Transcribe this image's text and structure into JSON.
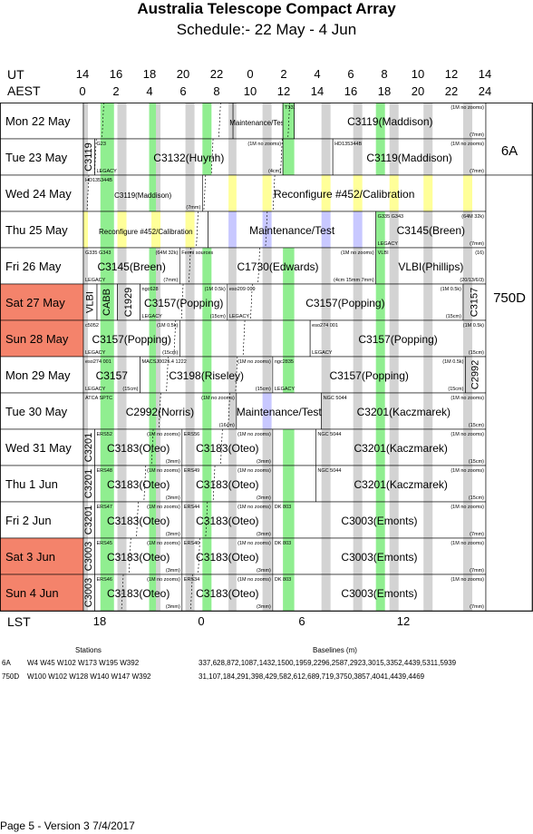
{
  "header": {
    "title": "Australia Telescope Compact Array",
    "subtitle": "Schedule:- 22 May - 4  Jun"
  },
  "time_axes": {
    "ut_label": "UT",
    "aest_label": "AEST",
    "lst_label": "LST",
    "ut_ticks": [
      "14",
      "16",
      "18",
      "20",
      "22",
      "0",
      "2",
      "4",
      "6",
      "8",
      "10",
      "12",
      "14"
    ],
    "aest_ticks": [
      "0",
      "2",
      "4",
      "6",
      "8",
      "10",
      "12",
      "14",
      "16",
      "18",
      "20",
      "22",
      "24"
    ],
    "lst_ticks": [
      "18",
      "0",
      "6",
      "12"
    ]
  },
  "colors": {
    "gray": "#d3d3d3",
    "green": "#90ee90",
    "lavender": "#c8c8ff",
    "yellow": "#ffff99",
    "weekend": "#f4836b",
    "white": "#ffffff"
  },
  "days": [
    {
      "label": "Mon  22 May",
      "weekend": false
    },
    {
      "label": "Tue  23 May",
      "weekend": false
    },
    {
      "label": "Wed 24 May",
      "weekend": false
    },
    {
      "label": "Thu  25 May",
      "weekend": false
    },
    {
      "label": "Fri    26 May",
      "weekend": false
    },
    {
      "label": "Sat   27 May",
      "weekend": true
    },
    {
      "label": "Sun  28 May",
      "weekend": true
    },
    {
      "label": "Mon 29 May",
      "weekend": false
    },
    {
      "label": "Tue  30 May",
      "weekend": false
    },
    {
      "label": "Wed 31 May",
      "weekend": false
    },
    {
      "label": "Thu    1  Jun",
      "weekend": false
    },
    {
      "label": "Fri     2  Jun",
      "weekend": false
    },
    {
      "label": "Sat    3  Jun",
      "weekend": true
    },
    {
      "label": "Sun    4  Jun",
      "weekend": true
    }
  ],
  "configs": [
    {
      "label": "6A",
      "row_start": 0,
      "row_end": 2
    },
    {
      "label": "750D",
      "row_start": 2,
      "row_end": 14
    }
  ],
  "blocks": [
    {
      "row": 0,
      "start": 0,
      "end": 13.2,
      "label": "",
      "bg": "white"
    },
    {
      "row": 0,
      "start": 13.2,
      "end": 17.6,
      "label": "Maintenance/Test",
      "size": 8,
      "bg": "white"
    },
    {
      "row": 0,
      "start": 17.6,
      "end": 18.6,
      "label": "",
      "note_tl": "T332",
      "bg": "white"
    },
    {
      "row": 0,
      "start": 18.6,
      "end": 35.5,
      "label": "C3119(Maddison)",
      "size": 12,
      "note_tr": "(1M no zooms)",
      "note_br": "(7mm)",
      "bg": "white"
    },
    {
      "row": 1,
      "start": 0,
      "end": 1,
      "label": "C3119",
      "vertical": true,
      "size": 11,
      "bg": "white"
    },
    {
      "row": 1,
      "start": 1,
      "end": 17.6,
      "label": "C3132(Huynh)",
      "size": 12,
      "note_tl": "G23",
      "note_bl": "LEGACY",
      "note_tr": "(1M no zooms)",
      "note_br": "(4cm)",
      "bg": "white"
    },
    {
      "row": 1,
      "start": 17.6,
      "end": 22,
      "label": "",
      "bg": "white"
    },
    {
      "row": 1,
      "start": 22,
      "end": 35.5,
      "label": "C3119(Maddison)",
      "size": 12,
      "note_tl": "HD135344B",
      "note_tr": "(1M no zooms)",
      "note_br": "(7mm)",
      "bg": "white"
    },
    {
      "row": 2,
      "start": 0,
      "end": 10.5,
      "label": "C3119(Maddison)",
      "size": 8,
      "note_tl": "HD135344B",
      "note_br": "(7mm)",
      "bg": "white"
    },
    {
      "row": 2,
      "start": 10.5,
      "end": 35.5,
      "label": "Reconfigure #452/Calibration",
      "size": 12,
      "bg": "recon"
    },
    {
      "row": 3,
      "start": 0,
      "end": 11,
      "label": "Reconfigure #452/Calibration",
      "size": 8,
      "bg": "recon"
    },
    {
      "row": 3,
      "start": 11,
      "end": 25.8,
      "label": "Maintenance/Test",
      "size": 12,
      "bg": "maint"
    },
    {
      "row": 3,
      "start": 25.8,
      "end": 35.5,
      "label": "C3145(Breen)",
      "size": 12,
      "note_tl": "G335 G343",
      "note_tr": "(64M 32k)",
      "note_bl": "LEGACY",
      "note_br": "(7mm)",
      "bg": "white"
    },
    {
      "row": 4,
      "start": 0,
      "end": 8.5,
      "label": "C3145(Breen)",
      "size": 12,
      "note_tl": "G335 G343",
      "note_tr": "(64M 32k)",
      "note_bl": "LEGACY",
      "note_br": "(7mm)",
      "bg": "white"
    },
    {
      "row": 4,
      "start": 8.5,
      "end": 25.8,
      "label": "C1730(Edwards)",
      "size": 12,
      "note_tl": "Fermi sources",
      "note_tr": "(1M no zooms)",
      "note_br": "(4cm 15mm 7mm)",
      "bg": "white"
    },
    {
      "row": 4,
      "start": 25.8,
      "end": 35.5,
      "label": "VLBI(Phillips)",
      "size": 12,
      "note_tl": "VLBI",
      "note_tr": "(16)",
      "note_br": "(20/13/6/3)",
      "bg": "white"
    },
    {
      "row": 5,
      "start": 0,
      "end": 1.2,
      "label": "VLBI",
      "vertical": true,
      "size": 11,
      "bg": "white"
    },
    {
      "row": 5,
      "start": 1.2,
      "end": 3,
      "label": "CABB",
      "vertical": true,
      "size": 11,
      "bg": "white"
    },
    {
      "row": 5,
      "start": 3,
      "end": 5,
      "label": "C1929",
      "vertical": true,
      "size": 11,
      "bg": "white"
    },
    {
      "row": 5,
      "start": 5,
      "end": 12.7,
      "label": "C3157(Popping)",
      "size": 12,
      "note_tl": "ngc628",
      "note_tr": "(1M 0.5k)",
      "note_bl": "LEGACY",
      "note_br": "(15cm)",
      "bg": "white"
    },
    {
      "row": 5,
      "start": 12.7,
      "end": 33.5,
      "label": "C3157(Popping)",
      "size": 12,
      "note_tl": "eso209 009",
      "note_tr": "(1M 0.5k)",
      "note_bl": "LEGACY",
      "note_br": "(15cm)",
      "bg": "white"
    },
    {
      "row": 5,
      "start": 33.5,
      "end": 35.5,
      "label": "C3157",
      "vertical": true,
      "size": 11,
      "bg": "white"
    },
    {
      "row": 6,
      "start": 0,
      "end": 8.5,
      "label": "C3157(Popping)",
      "size": 12,
      "note_tl": "c5052",
      "note_tr": "(1M 0.5k)",
      "note_bl": "LEGACY",
      "note_br": "(15cm)",
      "bg": "white"
    },
    {
      "row": 6,
      "start": 8.5,
      "end": 20,
      "label": "",
      "bg": "white"
    },
    {
      "row": 6,
      "start": 20,
      "end": 35.5,
      "label": "C3157(Popping)",
      "size": 12,
      "note_tl": "eso274 001",
      "note_tr": "(1M 0.5k)",
      "note_bl": "LEGACY",
      "note_br": "(15cm)",
      "bg": "white"
    },
    {
      "row": 7,
      "start": 0,
      "end": 5,
      "label": "C3157",
      "size": 12,
      "note_tl": "eso274 001",
      "note_bl": "LEGACY",
      "note_br": "(15cm)",
      "bg": "white"
    },
    {
      "row": 7,
      "start": 5,
      "end": 16.7,
      "label": "C3198(Riseley)",
      "size": 12,
      "note_tl": "MACSJ0025.4 1222",
      "note_tr": "(1M no zooms)",
      "note_br": "(15cm)",
      "bg": "white"
    },
    {
      "row": 7,
      "start": 16.7,
      "end": 33.7,
      "label": "C3157(Popping)",
      "size": 12,
      "note_tl": "ngc2835",
      "note_tr": "(1M 0.5k)",
      "note_bl": "LEGACY",
      "note_br": "(15cm)",
      "bg": "white"
    },
    {
      "row": 7,
      "start": 33.7,
      "end": 35.5,
      "label": "C2992",
      "vertical": true,
      "size": 11,
      "bg": "white"
    },
    {
      "row": 8,
      "start": 0,
      "end": 13.5,
      "label": "C2992(Norris)",
      "size": 12,
      "note_tl": "ATCA SPTC",
      "note_tr": "(1M no zooms)",
      "note_br": "(16cm)",
      "bg": "white"
    },
    {
      "row": 8,
      "start": 13.5,
      "end": 21,
      "label": "Maintenance/Test",
      "size": 12,
      "bg": "maint"
    },
    {
      "row": 8,
      "start": 21,
      "end": 35.5,
      "label": "C3201(Kaczmarek)",
      "size": 12,
      "note_tl": "NGC 5044",
      "note_tr": "(1M no zooms)",
      "note_br": "(15cm)",
      "bg": "white"
    },
    {
      "row": 9,
      "start": 0,
      "end": 1,
      "label": "C3201",
      "vertical": true,
      "size": 11,
      "bg": "white"
    },
    {
      "row": 9,
      "start": 1,
      "end": 8.7,
      "label": "C3183(Oteo)",
      "size": 12,
      "note_tl": "ERS52",
      "note_tr": "(1M no zooms)",
      "note_br": "(3mm)",
      "bg": "white"
    },
    {
      "row": 9,
      "start": 8.7,
      "end": 16.7,
      "label": "C3183(Oteo)",
      "size": 12,
      "note_tl": "ERS56",
      "note_tr": "(1M no zooms)",
      "note_br": "(3mm)",
      "bg": "white"
    },
    {
      "row": 9,
      "start": 16.7,
      "end": 20.5,
      "label": "",
      "bg": "white"
    },
    {
      "row": 9,
      "start": 20.5,
      "end": 35.5,
      "label": "C3201(Kaczmarek)",
      "size": 12,
      "note_tl": "NGC 5044",
      "note_tr": "(1M no zooms)",
      "note_br": "(15cm)",
      "bg": "white"
    },
    {
      "row": 10,
      "start": 0,
      "end": 1,
      "label": "C3201",
      "vertical": true,
      "size": 11,
      "bg": "white"
    },
    {
      "row": 10,
      "start": 1,
      "end": 8.7,
      "label": "C3183(Oteo)",
      "size": 12,
      "note_tl": "ERS48",
      "note_tr": "(1M no zooms)",
      "note_br": "(3mm)",
      "bg": "white"
    },
    {
      "row": 10,
      "start": 8.7,
      "end": 16.7,
      "label": "C3183(Oteo)",
      "size": 12,
      "note_tl": "ERS49",
      "note_tr": "(1M no zooms)",
      "note_br": "(3mm)",
      "bg": "white"
    },
    {
      "row": 10,
      "start": 16.7,
      "end": 20.5,
      "label": "",
      "bg": "white"
    },
    {
      "row": 10,
      "start": 20.5,
      "end": 35.5,
      "label": "C3201(Kaczmarek)",
      "size": 12,
      "note_tl": "NGC 5044",
      "note_tr": "(1M no zooms)",
      "note_br": "(15cm)",
      "bg": "white"
    },
    {
      "row": 11,
      "start": 0,
      "end": 1,
      "label": "C3201",
      "vertical": true,
      "size": 11,
      "bg": "white"
    },
    {
      "row": 11,
      "start": 1,
      "end": 8.7,
      "label": "C3183(Oteo)",
      "size": 12,
      "note_tl": "ERS47",
      "note_tr": "(1M no zooms)",
      "note_br": "(3mm)",
      "bg": "white"
    },
    {
      "row": 11,
      "start": 8.7,
      "end": 16.7,
      "label": "C3183(Oteo)",
      "size": 12,
      "note_tl": "ERS44",
      "note_tr": "(1M no zooms)",
      "note_br": "(3mm)",
      "bg": "white"
    },
    {
      "row": 11,
      "start": 16.7,
      "end": 35.5,
      "label": "C3003(Emonts)",
      "size": 12,
      "note_tl": "DK 803",
      "note_tr": "(1M no zooms)",
      "note_br": "(7mm)",
      "bg": "white"
    },
    {
      "row": 12,
      "start": 0,
      "end": 1,
      "label": "C3003",
      "vertical": true,
      "size": 11,
      "bg": "white"
    },
    {
      "row": 12,
      "start": 1,
      "end": 8.7,
      "label": "C3183(Oteo)",
      "size": 12,
      "note_tl": "ERS45",
      "note_tr": "(1M no zooms)",
      "note_br": "(3mm)",
      "bg": "white"
    },
    {
      "row": 12,
      "start": 8.7,
      "end": 16.7,
      "label": "C3183(Oteo)",
      "size": 12,
      "note_tl": "ERS40",
      "note_tr": "(1M no zooms)",
      "note_br": "(3mm)",
      "bg": "white"
    },
    {
      "row": 12,
      "start": 16.7,
      "end": 35.5,
      "label": "C3003(Emonts)",
      "size": 12,
      "note_tl": "DK 803",
      "note_tr": "(1M no zooms)",
      "note_br": "(7mm)",
      "bg": "white"
    },
    {
      "row": 13,
      "start": 0,
      "end": 1,
      "label": "C3003",
      "vertical": true,
      "size": 11,
      "bg": "white"
    },
    {
      "row": 13,
      "start": 1,
      "end": 8.7,
      "label": "C3183(Oteo)",
      "size": 12,
      "note_tl": "ERS46",
      "note_tr": "(1M no zooms)",
      "note_br": "(3mm)",
      "bg": "white"
    },
    {
      "row": 13,
      "start": 8.7,
      "end": 16.7,
      "label": "C3183(Oteo)",
      "size": 12,
      "note_tl": "ERS34",
      "note_tr": "(1M no zooms)",
      "note_br": "(3mm)",
      "bg": "white"
    },
    {
      "row": 13,
      "start": 16.7,
      "end": 35.5,
      "label": "C3003(Emonts)",
      "size": 12,
      "note_tl": "DK 803",
      "note_tr": "(1M no zooms)",
      "note_br": "(7mm)",
      "bg": "white"
    }
  ],
  "stations_table": {
    "stations_header": "Stations",
    "baselines_header": "Baselines (m)",
    "rows": [
      {
        "config": "6A",
        "stations": "W4 W45 W102 W173 W195 W392",
        "baselines": "337,628,872,1087,1432,1500,1959,2296,2587,2923,3015,3352,4439,5311,5939"
      },
      {
        "config": "750D",
        "stations": "W100 W102 W128 W140 W147 W392",
        "baselines": "31,107,184,291,398,429,582,612,689,719,3750,3857,4041,4439,4469"
      }
    ]
  },
  "footer": {
    "page": "Page 5 - Version 3  7/4/2017"
  }
}
